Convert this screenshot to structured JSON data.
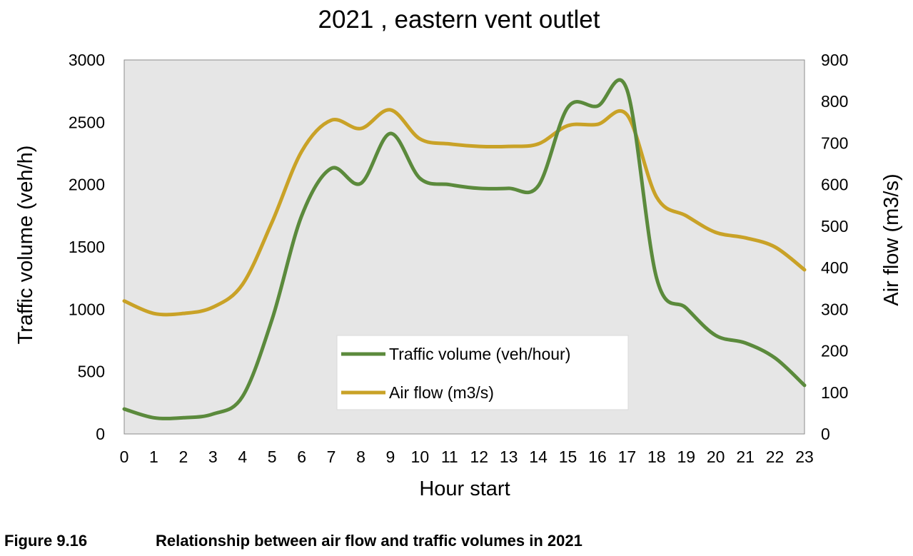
{
  "chart_data": {
    "type": "line",
    "title": "2021 , eastern vent outlet",
    "xlabel": "Hour start",
    "ylabel": "Traffic volume (veh/h)",
    "y2label": "Air flow (m3/s)",
    "x": [
      0,
      1,
      2,
      3,
      4,
      5,
      6,
      7,
      8,
      9,
      10,
      11,
      12,
      13,
      14,
      15,
      16,
      17,
      18,
      19,
      20,
      21,
      22,
      23
    ],
    "x_tick_labels": [
      "0",
      "1",
      "2",
      "3",
      "4",
      "5",
      "6",
      "7",
      "8",
      "9",
      "10",
      "11",
      "12",
      "13",
      "14",
      "15",
      "16",
      "17",
      "18",
      "19",
      "20",
      "21",
      "22",
      "23"
    ],
    "ylim": [
      0,
      3000
    ],
    "y_ticks": [
      "0",
      "500",
      "1000",
      "1500",
      "2000",
      "2500",
      "3000"
    ],
    "y2lim": [
      0,
      900
    ],
    "y2_ticks": [
      "0",
      "100",
      "200",
      "300",
      "400",
      "500",
      "600",
      "700",
      "800",
      "900"
    ],
    "grid": false,
    "plot_background": "#e6e6e6",
    "legend_position": "bottom-center",
    "series": [
      {
        "name": "Traffic volume (veh/hour)",
        "axis": "left",
        "color": "#5b8a3c",
        "values": [
          200,
          130,
          130,
          160,
          300,
          920,
          1750,
          2130,
          2010,
          2410,
          2050,
          2000,
          1970,
          1970,
          1990,
          2620,
          2630,
          2760,
          1250,
          1010,
          790,
          730,
          610,
          390
        ]
      },
      {
        "name": "Air flow (m3/s)",
        "axis": "right",
        "color": "#c9a227",
        "values": [
          320,
          290,
          290,
          305,
          360,
          510,
          680,
          755,
          735,
          780,
          710,
          698,
          692,
          692,
          698,
          742,
          745,
          768,
          570,
          525,
          485,
          472,
          450,
          395
        ]
      }
    ]
  },
  "caption": {
    "label": "Figure 9.16",
    "text": "Relationship between air flow and traffic volumes in 2021"
  }
}
